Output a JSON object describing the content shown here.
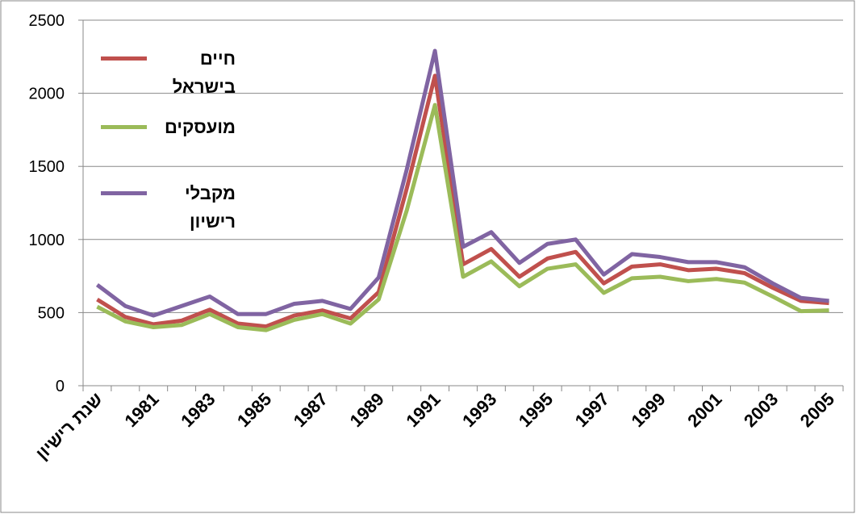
{
  "chart_data": {
    "type": "line",
    "categories": [
      "שנת רישיון",
      null,
      "1981",
      null,
      "1983",
      null,
      "1985",
      null,
      "1987",
      null,
      "1989",
      null,
      "1991",
      null,
      "1993",
      null,
      "1995",
      null,
      "1997",
      null,
      "1999",
      null,
      "2001",
      null,
      "2003",
      null,
      "2005"
    ],
    "series": [
      {
        "name": "חיים בישראל",
        "color": "#c0504d",
        "values": [
          590,
          470,
          420,
          445,
          520,
          425,
          405,
          480,
          515,
          460,
          640,
          1350,
          2120,
          830,
          935,
          745,
          870,
          915,
          700,
          815,
          830,
          790,
          800,
          770,
          670,
          580,
          565
        ]
      },
      {
        "name": "מועסקים",
        "color": "#9bbb59",
        "values": [
          540,
          440,
          400,
          415,
          490,
          400,
          380,
          450,
          490,
          425,
          590,
          1200,
          1920,
          745,
          850,
          680,
          800,
          830,
          635,
          735,
          745,
          715,
          730,
          705,
          610,
          510,
          515
        ]
      },
      {
        "name": "מקבלי רישיון",
        "color": "#8064a2",
        "values": [
          690,
          545,
          480,
          545,
          610,
          490,
          490,
          560,
          580,
          525,
          740,
          1480,
          2290,
          950,
          1050,
          840,
          970,
          1000,
          760,
          900,
          880,
          845,
          845,
          810,
          700,
          600,
          580
        ]
      }
    ],
    "ylim": [
      0,
      2500
    ],
    "yticks": [
      0,
      500,
      1000,
      1500,
      2000,
      2500
    ],
    "grid": true
  }
}
